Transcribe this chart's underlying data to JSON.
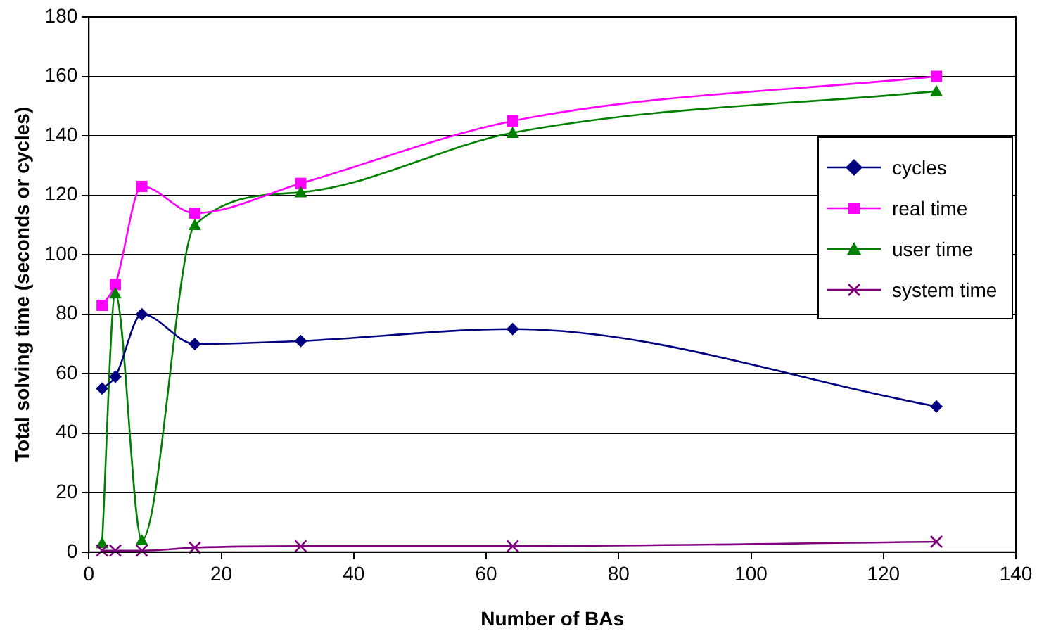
{
  "chart_data": {
    "type": "line",
    "xlabel": "Number of BAs",
    "ylabel": "Total solving time (seconds or cycles)",
    "x": [
      2,
      4,
      8,
      16,
      32,
      64,
      128
    ],
    "xlim": [
      0,
      140
    ],
    "xticks": [
      0,
      20,
      40,
      60,
      80,
      100,
      120,
      140
    ],
    "ylim": [
      0,
      180
    ],
    "yticks": [
      0,
      20,
      40,
      60,
      80,
      100,
      120,
      140,
      160,
      180
    ],
    "grid": "y",
    "legend": "right",
    "series": [
      {
        "name": "cycles",
        "color": "#000080",
        "marker": "diamond",
        "values": [
          55,
          59,
          80,
          70,
          71,
          75,
          49
        ]
      },
      {
        "name": "real time",
        "color": "#ff00ff",
        "marker": "square",
        "values": [
          83,
          90,
          123,
          114,
          124,
          145,
          160
        ]
      },
      {
        "name": "user time",
        "color": "#008000",
        "marker": "triangle",
        "values": [
          3,
          87,
          4,
          110,
          121,
          141,
          155
        ]
      },
      {
        "name": "system time",
        "color": "#800080",
        "marker": "cross",
        "values": [
          0.5,
          0.5,
          0.5,
          1.5,
          2,
          2,
          3.5
        ]
      }
    ]
  }
}
